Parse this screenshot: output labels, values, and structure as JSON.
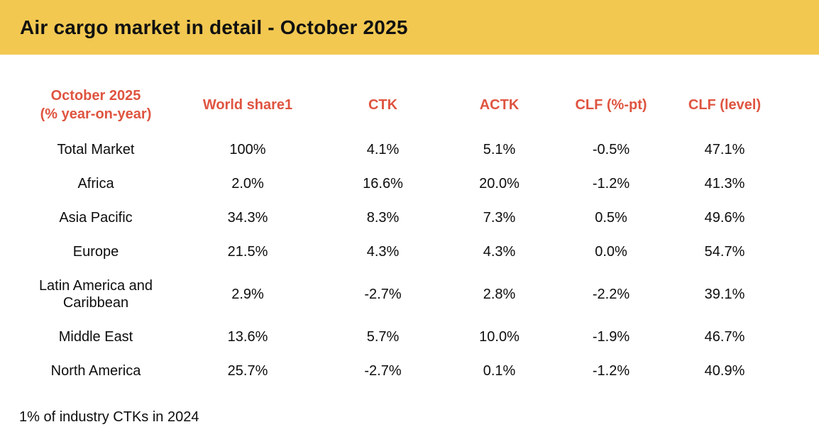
{
  "banner": {
    "title": "Air cargo market in detail - October 2025"
  },
  "colors": {
    "banner_background": "#F2C851",
    "header_text": "#DF5440",
    "body_text": "#0d0d0d",
    "page_background": "#ffffff"
  },
  "table": {
    "header": {
      "period_line1": "October 2025",
      "period_line2": "(% year-on-year)",
      "world_share": "World share1",
      "ctk": "CTK",
      "actk": "ACTK",
      "clf_pt": "CLF (%-pt)",
      "clf_level": "CLF (level)"
    },
    "rows": [
      {
        "region": "Total Market",
        "world_share": "100%",
        "ctk": "4.1%",
        "actk": "5.1%",
        "clf_pt": "-0.5%",
        "clf_level": "47.1%"
      },
      {
        "region": "Africa",
        "world_share": "2.0%",
        "ctk": "16.6%",
        "actk": "20.0%",
        "clf_pt": "-1.2%",
        "clf_level": "41.3%"
      },
      {
        "region": "Asia Pacific",
        "world_share": "34.3%",
        "ctk": "8.3%",
        "actk": "7.3%",
        "clf_pt": "0.5%",
        "clf_level": "49.6%"
      },
      {
        "region": "Europe",
        "world_share": "21.5%",
        "ctk": "4.3%",
        "actk": "4.3%",
        "clf_pt": "0.0%",
        "clf_level": "54.7%"
      },
      {
        "region": "Latin America and Caribbean",
        "world_share": "2.9%",
        "ctk": "-2.7%",
        "actk": "2.8%",
        "clf_pt": "-2.2%",
        "clf_level": "39.1%"
      },
      {
        "region": "Middle East",
        "world_share": "13.6%",
        "ctk": "5.7%",
        "actk": "10.0%",
        "clf_pt": "-1.9%",
        "clf_level": "46.7%"
      },
      {
        "region": "North America",
        "world_share": "25.7%",
        "ctk": "-2.7%",
        "actk": "0.1%",
        "clf_pt": "-1.2%",
        "clf_level": "40.9%"
      }
    ]
  },
  "footnote": "1% of industry CTKs in 2024"
}
